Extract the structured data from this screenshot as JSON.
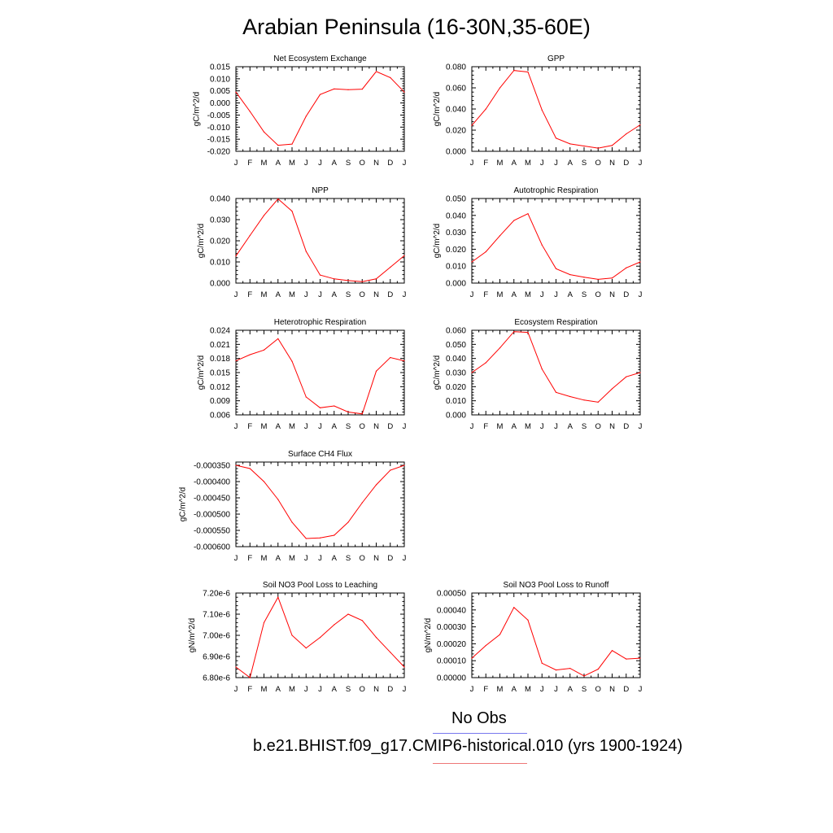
{
  "title": "Arabian Peninsula (16-30N,35-60E)",
  "legend": {
    "obs_label": "No Obs",
    "obs_color": "#7777ee",
    "case_label": "b.e21.BHIST.f09_g17.CMIP6-historical.010 (yrs 1900-1924)",
    "case_color": "#ee7777"
  },
  "line_color": "#ff0000",
  "chart_data": [
    {
      "type": "line",
      "title": "Net Ecosystem Exchange",
      "ylabel": "gC/m^2/d",
      "categories": [
        "J",
        "F",
        "M",
        "A",
        "M",
        "J",
        "J",
        "A",
        "S",
        "O",
        "N",
        "D",
        "J"
      ],
      "values": [
        0.0045,
        -0.0035,
        -0.012,
        -0.0175,
        -0.017,
        -0.0055,
        0.0035,
        0.0058,
        0.0055,
        0.0057,
        0.013,
        0.0105,
        0.0045
      ],
      "ylim": [
        -0.02,
        0.015
      ],
      "yticks": [
        -0.02,
        -0.015,
        -0.01,
        -0.005,
        0.0,
        0.005,
        0.01,
        0.015
      ],
      "ytick_labels": [
        "-0.020",
        "-0.015",
        "-0.010",
        "-0.005",
        "0.000",
        "0.005",
        "0.010",
        "0.015"
      ]
    },
    {
      "type": "line",
      "title": "GPP",
      "ylabel": "gC/m^2/d",
      "categories": [
        "J",
        "F",
        "M",
        "A",
        "M",
        "J",
        "J",
        "A",
        "S",
        "O",
        "N",
        "D",
        "J"
      ],
      "values": [
        0.0245,
        0.04,
        0.06,
        0.0765,
        0.075,
        0.039,
        0.0125,
        0.007,
        0.005,
        0.003,
        0.0055,
        0.0165,
        0.025
      ],
      "ylim": [
        0.0,
        0.08
      ],
      "yticks": [
        0.0,
        0.02,
        0.04,
        0.06,
        0.08
      ],
      "ytick_labels": [
        "0.000",
        "0.020",
        "0.040",
        "0.060",
        "0.080"
      ]
    },
    {
      "type": "line",
      "title": "NPP",
      "ylabel": "gC/m^2/d",
      "categories": [
        "J",
        "F",
        "M",
        "A",
        "M",
        "J",
        "J",
        "A",
        "S",
        "O",
        "N",
        "D",
        "J"
      ],
      "values": [
        0.0128,
        0.0225,
        0.032,
        0.0398,
        0.034,
        0.015,
        0.0038,
        0.002,
        0.0012,
        0.0007,
        0.002,
        0.0075,
        0.013
      ],
      "ylim": [
        0.0,
        0.04
      ],
      "yticks": [
        0.0,
        0.01,
        0.02,
        0.03,
        0.04
      ],
      "ytick_labels": [
        "0.000",
        "0.010",
        "0.020",
        "0.030",
        "0.040"
      ]
    },
    {
      "type": "line",
      "title": "Autotrophic Respiration",
      "ylabel": "gC/m^2/d",
      "categories": [
        "J",
        "F",
        "M",
        "A",
        "M",
        "J",
        "J",
        "A",
        "S",
        "O",
        "N",
        "D",
        "J"
      ],
      "values": [
        0.0125,
        0.0185,
        0.028,
        0.037,
        0.041,
        0.0225,
        0.0085,
        0.005,
        0.0035,
        0.0022,
        0.003,
        0.009,
        0.0125
      ],
      "ylim": [
        0.0,
        0.05
      ],
      "yticks": [
        0.0,
        0.01,
        0.02,
        0.03,
        0.04,
        0.05
      ],
      "ytick_labels": [
        "0.000",
        "0.010",
        "0.020",
        "0.030",
        "0.040",
        "0.050"
      ]
    },
    {
      "type": "line",
      "title": "Heterotrophic Respiration",
      "ylabel": "gC/m^2/d",
      "categories": [
        "J",
        "F",
        "M",
        "A",
        "M",
        "J",
        "J",
        "A",
        "S",
        "O",
        "N",
        "D",
        "J"
      ],
      "values": [
        0.0175,
        0.0188,
        0.0198,
        0.0222,
        0.0174,
        0.0098,
        0.0075,
        0.0079,
        0.0066,
        0.0062,
        0.0153,
        0.0182,
        0.0175
      ],
      "ylim": [
        0.006,
        0.024
      ],
      "yticks": [
        0.006,
        0.009,
        0.012,
        0.015,
        0.018,
        0.021,
        0.024
      ],
      "ytick_labels": [
        "0.006",
        "0.009",
        "0.012",
        "0.015",
        "0.018",
        "0.021",
        "0.024"
      ]
    },
    {
      "type": "line",
      "title": "Ecosystem Respiration",
      "ylabel": "gC/m^2/d",
      "categories": [
        "J",
        "F",
        "M",
        "A",
        "M",
        "J",
        "J",
        "A",
        "S",
        "O",
        "N",
        "D",
        "J"
      ],
      "values": [
        0.03,
        0.037,
        0.0475,
        0.059,
        0.0585,
        0.0325,
        0.016,
        0.013,
        0.0105,
        0.009,
        0.0185,
        0.027,
        0.03
      ],
      "ylim": [
        0.0,
        0.06
      ],
      "yticks": [
        0.0,
        0.01,
        0.02,
        0.03,
        0.04,
        0.05,
        0.06
      ],
      "ytick_labels": [
        "0.000",
        "0.010",
        "0.020",
        "0.030",
        "0.040",
        "0.050",
        "0.060"
      ]
    },
    {
      "type": "line",
      "title": "Surface CH4 Flux",
      "ylabel": "gC/m^2/d",
      "categories": [
        "J",
        "F",
        "M",
        "A",
        "M",
        "J",
        "J",
        "A",
        "S",
        "O",
        "N",
        "D",
        "J"
      ],
      "values": [
        -0.00035,
        -0.00036,
        -0.0004,
        -0.000455,
        -0.000525,
        -0.000575,
        -0.000573,
        -0.000565,
        -0.000525,
        -0.000465,
        -0.00041,
        -0.000365,
        -0.00035
      ],
      "ylim": [
        -0.0006,
        -0.00034
      ],
      "yticks": [
        -0.0006,
        -0.00055,
        -0.0005,
        -0.00045,
        -0.0004,
        -0.00035
      ],
      "ytick_labels": [
        "-0.000600",
        "-0.000550",
        "-0.000500",
        "-0.000450",
        "-0.000400",
        "-0.000350"
      ]
    },
    {
      "type": "line",
      "title": "Soil NO3 Pool Loss to Leaching",
      "ylabel": "gN/m^2/d",
      "categories": [
        "J",
        "F",
        "M",
        "A",
        "M",
        "J",
        "J",
        "A",
        "S",
        "O",
        "N",
        "D",
        "J"
      ],
      "values": [
        6.85e-06,
        6.8e-06,
        7.06e-06,
        7.18e-06,
        7e-06,
        6.94e-06,
        6.99e-06,
        7.05e-06,
        7.1e-06,
        7.07e-06,
        6.99e-06,
        6.92e-06,
        6.85e-06
      ],
      "ylim": [
        6.8e-06,
        7.2e-06
      ],
      "yticks": [
        6.8e-06,
        6.9e-06,
        7e-06,
        7.1e-06,
        7.2e-06
      ],
      "ytick_labels": [
        "6.80e-6",
        "6.90e-6",
        "7.00e-6",
        "7.10e-6",
        "7.20e-6"
      ]
    },
    {
      "type": "line",
      "title": "Soil NO3 Pool Loss to Runoff",
      "ylabel": "gN/m^2/d",
      "categories": [
        "J",
        "F",
        "M",
        "A",
        "M",
        "J",
        "J",
        "A",
        "S",
        "O",
        "N",
        "D",
        "J"
      ],
      "values": [
        0.000115,
        0.00019,
        0.000255,
        0.000415,
        0.00034,
        8.5e-05,
        4.5e-05,
        5.5e-05,
        1e-05,
        5e-05,
        0.00016,
        0.00011,
        0.000115
      ],
      "ylim": [
        0.0,
        0.0005
      ],
      "yticks": [
        0.0,
        0.0001,
        0.0002,
        0.0003,
        0.0004,
        0.0005
      ],
      "ytick_labels": [
        "0.00000",
        "0.00010",
        "0.00020",
        "0.00030",
        "0.00040",
        "0.00050"
      ]
    }
  ]
}
